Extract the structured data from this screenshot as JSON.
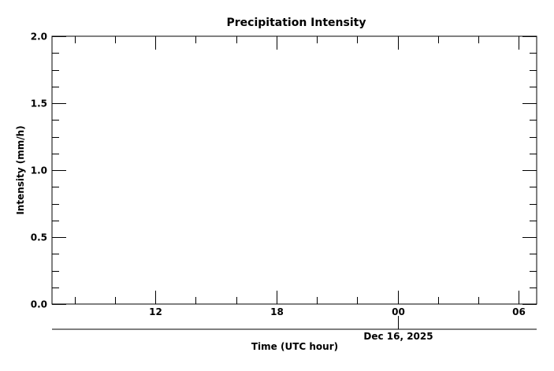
{
  "chart_data": {
    "type": "line",
    "title": "Precipitation Intensity",
    "xlabel": "Time (UTC hour)",
    "ylabel": "Intensity (mm/h)",
    "xlim": [
      "2025-12-15T06:53",
      "2025-12-16T06:53"
    ],
    "ylim": [
      0,
      2.0
    ],
    "x_ticks": [
      {
        "time": "2025-12-15T12:00",
        "label": "12"
      },
      {
        "time": "2025-12-15T18:00",
        "label": "18"
      },
      {
        "time": "2025-12-16T00:00",
        "label": "00"
      },
      {
        "time": "2025-12-16T06:00",
        "label": "06"
      }
    ],
    "x_minor_tick_hours": 2,
    "y_ticks": [
      {
        "value": 0.0,
        "label": "0.0"
      },
      {
        "value": 0.5,
        "label": "0.5"
      },
      {
        "value": 1.0,
        "label": "1.0"
      },
      {
        "value": 1.5,
        "label": "1.5"
      },
      {
        "value": 2.0,
        "label": "2.0"
      }
    ],
    "y_minor_tick_step": 0.125,
    "date_marker": {
      "time": "2025-12-16T00:00",
      "label": "Dec 16, 2025"
    },
    "grid": false,
    "series": [],
    "colors": {
      "axis": "#000000",
      "background": "#ffffff"
    }
  }
}
